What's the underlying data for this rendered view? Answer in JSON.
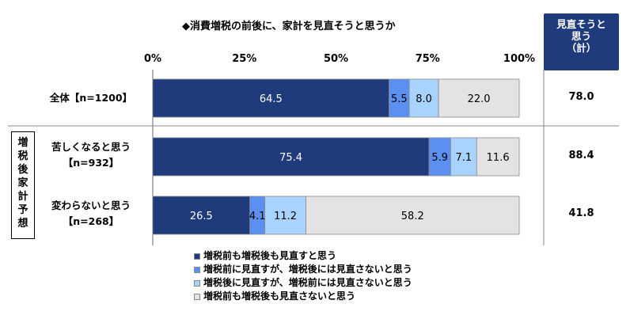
{
  "chart_data": {
    "type": "bar",
    "orientation": "horizontal",
    "stacked": true,
    "title": "◆消費増税の前後に、家計を見直そうと思うか",
    "xlim": [
      0,
      100
    ],
    "x_ticks": [
      "0%",
      "25%",
      "50%",
      "75%",
      "100%"
    ],
    "categories": [
      {
        "line1": "全体【n=1200】",
        "line2": ""
      },
      {
        "line1": "苦しくなると思う",
        "line2": "【n=932】"
      },
      {
        "line1": "変わらないと思う",
        "line2": "【n=268】"
      }
    ],
    "series": [
      {
        "name": "増税前も増税後も見直すと思う",
        "color": "#1f3b7c",
        "text_color": "#ffffff",
        "values": [
          64.5,
          75.4,
          26.5
        ]
      },
      {
        "name": "増税前に見直すが、増税後には見直さないと思う",
        "color": "#5b8ff0",
        "text_color": "#000000",
        "values": [
          5.5,
          5.9,
          4.1
        ]
      },
      {
        "name": "増税後に見直すが、増税前には見直さないと思う",
        "color": "#a9d3ff",
        "text_color": "#000000",
        "values": [
          8.0,
          7.1,
          11.2
        ]
      },
      {
        "name": "増税前も増税後も見直さないと思う",
        "color": "#e3e3e3",
        "text_color": "#000000",
        "values": [
          22.0,
          11.6,
          58.2
        ]
      }
    ],
    "summary_header": [
      "見直そうと",
      "思う",
      "（計）"
    ],
    "summary_values": [
      "78.0",
      "88.4",
      "41.8"
    ],
    "group_label": [
      "増",
      "税",
      "後",
      "家",
      "計",
      "予",
      "想"
    ],
    "legend_position": "bottom"
  }
}
